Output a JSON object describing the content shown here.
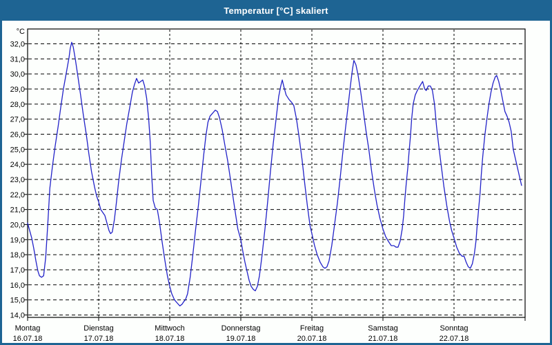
{
  "window": {
    "title": "Temperatur [°C] skaliert"
  },
  "colors": {
    "titlebar_bg": "#1e6493",
    "window_border": "#1e6493",
    "title_text": "#ffffff",
    "plot_bg": "#fdfffd",
    "line": "#2121c8",
    "grid": "#000000",
    "axis": "#000000",
    "text": "#000000"
  },
  "chart_data": {
    "type": "line",
    "title": "Temperatur [°C] skaliert",
    "ylabel": "°C",
    "unit_label": "°C",
    "decimal_style": "comma",
    "grid": "dashed",
    "legend": "none",
    "ylim": [
      13.8,
      33.0
    ],
    "y_ticks": [
      {
        "value": 32,
        "label": "32,0"
      },
      {
        "value": 31,
        "label": "31,0"
      },
      {
        "value": 30,
        "label": "30,0"
      },
      {
        "value": 29,
        "label": "29,0"
      },
      {
        "value": 28,
        "label": "28,0"
      },
      {
        "value": 27,
        "label": "27,0"
      },
      {
        "value": 26,
        "label": "26,0"
      },
      {
        "value": 25,
        "label": "25,0"
      },
      {
        "value": 24,
        "label": "24,0"
      },
      {
        "value": 23,
        "label": "23,0"
      },
      {
        "value": 22,
        "label": "22,0"
      },
      {
        "value": 21,
        "label": "21,0"
      },
      {
        "value": 20,
        "label": "20,0"
      },
      {
        "value": 19,
        "label": "19,0"
      },
      {
        "value": 18,
        "label": "18,0"
      },
      {
        "value": 17,
        "label": "17,0"
      },
      {
        "value": 16,
        "label": "16,0"
      },
      {
        "value": 15,
        "label": "15,0"
      },
      {
        "value": 14,
        "label": "14,0"
      }
    ],
    "x_days": [
      {
        "name": "Montag",
        "date": "16.07.18"
      },
      {
        "name": "Dienstag",
        "date": "17.07.18"
      },
      {
        "name": "Mittwoch",
        "date": "18.07.18"
      },
      {
        "name": "Donnerstag",
        "date": "19.07.18"
      },
      {
        "name": "Freitag",
        "date": "20.07.18"
      },
      {
        "name": "Samstag",
        "date": "21.07.18"
      },
      {
        "name": "Sonntag",
        "date": "22.07.18"
      }
    ],
    "x_hours_total": 168,
    "series": [
      {
        "name": "Temperatur",
        "color": "#2121c8",
        "points_hours_temp": [
          [
            0,
            20.1
          ],
          [
            0.7,
            19.6
          ],
          [
            1.4,
            19.1
          ],
          [
            2.1,
            18.4
          ],
          [
            2.8,
            17.6
          ],
          [
            3.5,
            16.9
          ],
          [
            4,
            16.6
          ],
          [
            4.7,
            16.5
          ],
          [
            5.4,
            16.6
          ],
          [
            6.1,
            17.8
          ],
          [
            6.8,
            20
          ],
          [
            7.5,
            22.4
          ],
          [
            8.4,
            23.9
          ],
          [
            9.3,
            25.2
          ],
          [
            10.3,
            26.5
          ],
          [
            11.2,
            27.8
          ],
          [
            12.1,
            29
          ],
          [
            13,
            30
          ],
          [
            14,
            31.1
          ],
          [
            14.4,
            31.7
          ],
          [
            14.9,
            32.1
          ],
          [
            15.4,
            31.8
          ],
          [
            16.1,
            31
          ],
          [
            17,
            29.8
          ],
          [
            17.9,
            28.6
          ],
          [
            18.8,
            27.3
          ],
          [
            19.8,
            26
          ],
          [
            20.7,
            24.7
          ],
          [
            21.6,
            23.5
          ],
          [
            22.6,
            22.5
          ],
          [
            23.3,
            21.9
          ],
          [
            24,
            21.5
          ],
          [
            24.7,
            21
          ],
          [
            25.4,
            20.8
          ],
          [
            26.1,
            20.6
          ],
          [
            26.8,
            20.1
          ],
          [
            27.5,
            19.6
          ],
          [
            28,
            19.4
          ],
          [
            28.6,
            19.5
          ],
          [
            29.3,
            20.3
          ],
          [
            30,
            21.5
          ],
          [
            30.7,
            22.8
          ],
          [
            31.7,
            24.3
          ],
          [
            32.6,
            25.5
          ],
          [
            33.5,
            26.7
          ],
          [
            34.5,
            27.8
          ],
          [
            35.4,
            28.8
          ],
          [
            36.1,
            29.3
          ],
          [
            36.8,
            29.7
          ],
          [
            37.5,
            29.4
          ],
          [
            38.2,
            29.5
          ],
          [
            38.9,
            29.6
          ],
          [
            39.5,
            29.2
          ],
          [
            40.2,
            28.4
          ],
          [
            40.9,
            27
          ],
          [
            41.4,
            25.5
          ],
          [
            41.9,
            23.3
          ],
          [
            42.4,
            21.6
          ],
          [
            43.1,
            21.1
          ],
          [
            43.8,
            21
          ],
          [
            44.5,
            20.2
          ],
          [
            45.4,
            18.9
          ],
          [
            46.3,
            17.7
          ],
          [
            47.2,
            16.6
          ],
          [
            48,
            15.9
          ],
          [
            48.7,
            15.4
          ],
          [
            49.6,
            15
          ],
          [
            50.5,
            14.8
          ],
          [
            51.4,
            14.6
          ],
          [
            52.1,
            14.7
          ],
          [
            52.8,
            14.9
          ],
          [
            53.3,
            15
          ],
          [
            54,
            15.4
          ],
          [
            54.9,
            16.5
          ],
          [
            55.8,
            18
          ],
          [
            56.7,
            19.6
          ],
          [
            57.7,
            21.3
          ],
          [
            58.6,
            23
          ],
          [
            59.5,
            24.7
          ],
          [
            60.2,
            25.9
          ],
          [
            60.9,
            26.8
          ],
          [
            61.6,
            27.2
          ],
          [
            62.5,
            27.4
          ],
          [
            63.4,
            27.6
          ],
          [
            64.1,
            27.5
          ],
          [
            64.8,
            27.1
          ],
          [
            65.7,
            26.3
          ],
          [
            66.6,
            25.3
          ],
          [
            67.6,
            24.2
          ],
          [
            68.5,
            23
          ],
          [
            69.4,
            21.8
          ],
          [
            70.3,
            20.6
          ],
          [
            71,
            19.7
          ],
          [
            72,
            19
          ],
          [
            72.7,
            18.2
          ],
          [
            73.4,
            17.5
          ],
          [
            74.1,
            16.9
          ],
          [
            74.8,
            16.3
          ],
          [
            75.5,
            15.9
          ],
          [
            76.2,
            15.7
          ],
          [
            76.9,
            15.6
          ],
          [
            77.6,
            15.9
          ],
          [
            78.3,
            16.6
          ],
          [
            79.2,
            18
          ],
          [
            80.2,
            19.8
          ],
          [
            81.1,
            21.6
          ],
          [
            82,
            23.5
          ],
          [
            82.9,
            25.3
          ],
          [
            83.9,
            27
          ],
          [
            84.8,
            28.5
          ],
          [
            85.5,
            29.2
          ],
          [
            86,
            29.6
          ],
          [
            86.6,
            29.1
          ],
          [
            87.3,
            28.6
          ],
          [
            88.3,
            28.3
          ],
          [
            89.2,
            28.1
          ],
          [
            89.9,
            27.9
          ],
          [
            90.8,
            27
          ],
          [
            91.7,
            25.8
          ],
          [
            92.7,
            24.3
          ],
          [
            93.6,
            22.7
          ],
          [
            94.5,
            21.2
          ],
          [
            95.4,
            19.9
          ],
          [
            96,
            19.4
          ],
          [
            96.9,
            18.6
          ],
          [
            97.8,
            18
          ],
          [
            98.8,
            17.5
          ],
          [
            99.7,
            17.2
          ],
          [
            100.4,
            17.1
          ],
          [
            101.1,
            17.2
          ],
          [
            101.8,
            17.6
          ],
          [
            102.7,
            18.6
          ],
          [
            103.6,
            19.9
          ],
          [
            104.6,
            21.4
          ],
          [
            105.5,
            23
          ],
          [
            106.4,
            24.7
          ],
          [
            107.3,
            26.3
          ],
          [
            108.3,
            28
          ],
          [
            109,
            29.2
          ],
          [
            109.7,
            30.3
          ],
          [
            110.2,
            30.9
          ],
          [
            110.9,
            30.6
          ],
          [
            111.6,
            29.9
          ],
          [
            112.5,
            28.8
          ],
          [
            113.4,
            27.5
          ],
          [
            114.3,
            26.2
          ],
          [
            115.3,
            24.9
          ],
          [
            116.2,
            23.5
          ],
          [
            117.1,
            22.3
          ],
          [
            118,
            21.3
          ],
          [
            119,
            20.4
          ],
          [
            120,
            19.7
          ],
          [
            120.9,
            19.2
          ],
          [
            121.8,
            18.9
          ],
          [
            122.8,
            18.6
          ],
          [
            123.7,
            18.6
          ],
          [
            124.4,
            18.5
          ],
          [
            125.1,
            18.5
          ],
          [
            125.8,
            18.9
          ],
          [
            126.5,
            19.7
          ],
          [
            127,
            20.6
          ],
          [
            127.4,
            21.7
          ],
          [
            127.9,
            22.8
          ],
          [
            128.4,
            23.8
          ],
          [
            128.8,
            24.8
          ],
          [
            129.3,
            25.9
          ],
          [
            129.7,
            27
          ],
          [
            130.2,
            28
          ],
          [
            130.9,
            28.6
          ],
          [
            131.6,
            28.9
          ],
          [
            132.5,
            29.2
          ],
          [
            133.4,
            29.5
          ],
          [
            134.1,
            29
          ],
          [
            134.6,
            28.9
          ],
          [
            135.3,
            29.2
          ],
          [
            136,
            29.2
          ],
          [
            136.7,
            28.9
          ],
          [
            137.4,
            28
          ],
          [
            138.1,
            26.5
          ],
          [
            138.8,
            25.3
          ],
          [
            139.7,
            23.9
          ],
          [
            140.6,
            22.5
          ],
          [
            141.6,
            21.2
          ],
          [
            142.5,
            20.2
          ],
          [
            143.2,
            19.6
          ],
          [
            144,
            19.1
          ],
          [
            144.9,
            18.5
          ],
          [
            145.8,
            18.1
          ],
          [
            146.7,
            17.9
          ],
          [
            147.4,
            17.9
          ],
          [
            148.1,
            17.5
          ],
          [
            148.8,
            17.2
          ],
          [
            149.5,
            17.1
          ],
          [
            150.2,
            17.4
          ],
          [
            150.9,
            18.1
          ],
          [
            151.4,
            18.9
          ],
          [
            151.8,
            19.9
          ],
          [
            152.3,
            21
          ],
          [
            152.8,
            22.1
          ],
          [
            153.2,
            23.3
          ],
          [
            153.7,
            24.5
          ],
          [
            154.4,
            25.9
          ],
          [
            155.1,
            27
          ],
          [
            155.8,
            28
          ],
          [
            156.5,
            28.8
          ],
          [
            157.2,
            29.4
          ],
          [
            157.9,
            29.8
          ],
          [
            158.4,
            29.9
          ],
          [
            159.1,
            29.5
          ],
          [
            159.8,
            28.9
          ],
          [
            160.5,
            28.2
          ],
          [
            161.2,
            27.5
          ],
          [
            161.9,
            27.2
          ],
          [
            162.6,
            26.8
          ],
          [
            163.3,
            26.2
          ],
          [
            164,
            25
          ],
          [
            164.7,
            24.4
          ],
          [
            165.4,
            23.8
          ],
          [
            166.1,
            23.2
          ],
          [
            166.8,
            22.6
          ]
        ]
      }
    ]
  }
}
